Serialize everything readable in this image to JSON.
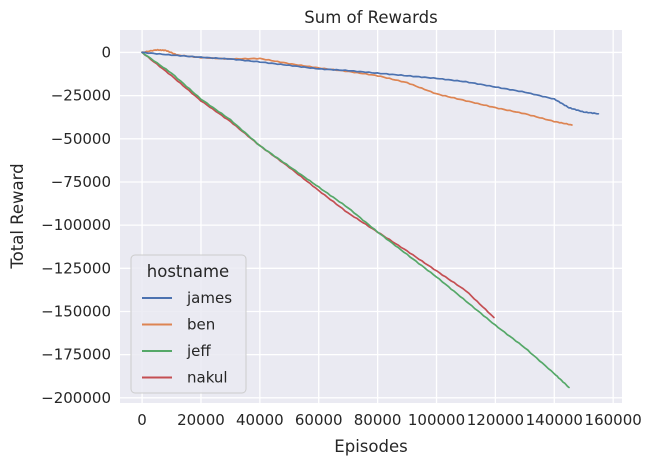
{
  "chart_data": {
    "type": "line",
    "title": "Sum of Rewards",
    "xlabel": "Episodes",
    "ylabel": "Total Reward",
    "xlim": [
      -7500,
      163000
    ],
    "ylim": [
      -203000,
      13000
    ],
    "xticks": [
      0,
      20000,
      40000,
      60000,
      80000,
      100000,
      120000,
      140000,
      160000
    ],
    "xtick_labels": [
      "0",
      "20000",
      "40000",
      "60000",
      "80000",
      "100000",
      "120000",
      "140000",
      "160000"
    ],
    "yticks": [
      0,
      -25000,
      -50000,
      -75000,
      -100000,
      -125000,
      -150000,
      -175000,
      -200000
    ],
    "ytick_labels": [
      "0",
      "−25000",
      "−50000",
      "−75000",
      "−100000",
      "−125000",
      "−150000",
      "−175000",
      "−200000"
    ],
    "grid": true,
    "legend": {
      "title": "hostname",
      "placement": "lower-left"
    },
    "series": [
      {
        "name": "james",
        "color": "#4c72b0",
        "x": [
          0,
          10000,
          20000,
          30000,
          40000,
          50000,
          60000,
          70000,
          80000,
          90000,
          100000,
          110000,
          120000,
          130000,
          140000,
          145000,
          150000,
          155000
        ],
        "y": [
          0,
          -1500,
          -2800,
          -3800,
          -5500,
          -7500,
          -9500,
          -10500,
          -12000,
          -13500,
          -15000,
          -17000,
          -20000,
          -23000,
          -27000,
          -32000,
          -34500,
          -35500
        ]
      },
      {
        "name": "ben",
        "color": "#dd8452",
        "x": [
          0,
          5000,
          8000,
          12000,
          20000,
          30000,
          40000,
          50000,
          60000,
          70000,
          80000,
          90000,
          100000,
          110000,
          120000,
          130000,
          140000,
          146000
        ],
        "y": [
          0,
          1500,
          1200,
          -1500,
          -3000,
          -3800,
          -3500,
          -6500,
          -9000,
          -11000,
          -13500,
          -17500,
          -24000,
          -28000,
          -32000,
          -35500,
          -40000,
          -42000
        ]
      },
      {
        "name": "jeff",
        "color": "#55a868",
        "x": [
          0,
          10000,
          20000,
          30000,
          40000,
          50000,
          60000,
          70000,
          80000,
          90000,
          100000,
          110000,
          120000,
          130000,
          140000,
          145000
        ],
        "y": [
          0,
          -12000,
          -27000,
          -39000,
          -54000,
          -66000,
          -78000,
          -90000,
          -104000,
          -117000,
          -130000,
          -144000,
          -158000,
          -171000,
          -186000,
          -194000
        ]
      },
      {
        "name": "nakul",
        "color": "#c44e52",
        "x": [
          0,
          10000,
          20000,
          30000,
          40000,
          50000,
          60000,
          70000,
          80000,
          90000,
          100000,
          110000,
          119500
        ],
        "y": [
          0,
          -13500,
          -28000,
          -40000,
          -54000,
          -66500,
          -80000,
          -93000,
          -104000,
          -115000,
          -126500,
          -138000,
          -153500
        ]
      }
    ]
  }
}
